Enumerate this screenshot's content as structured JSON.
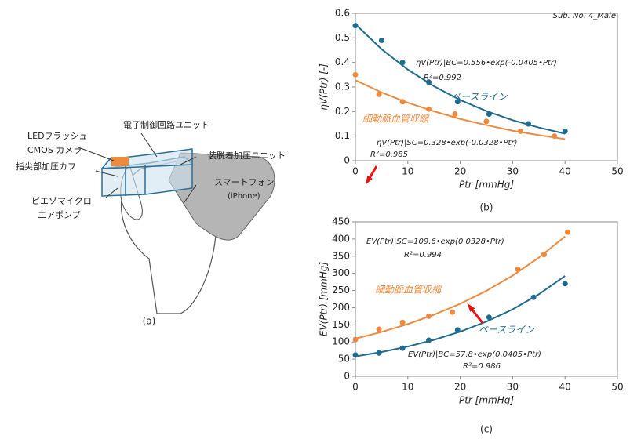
{
  "diagram": {
    "labels": [
      "LEDフラッシュ",
      "CMOS カメラ",
      "電子制御回路ユニット",
      "装脱着加圧ユニット",
      "指尖部加圧カフ",
      "スマートフォン",
      "(iPhone)",
      "ピエゾマイクロ",
      "エアポンプ"
    ],
    "caption": "(a)"
  },
  "chart_data": [
    {
      "type": "scatter",
      "caption": "(b)",
      "x_label": "Ptr [mmHg]",
      "y_label": "ηV(Ptr) [-]",
      "xlim": [
        0,
        50
      ],
      "xticks": [
        0,
        10,
        20,
        30,
        40,
        50
      ],
      "ylim": [
        0,
        0.6
      ],
      "yticks": [
        0,
        0.1,
        0.2,
        0.3,
        0.4,
        0.5,
        0.6
      ],
      "grid": false,
      "series": [
        {
          "style": "markers",
          "color": "#1f6c8f",
          "x": [
            0,
            5,
            9,
            14,
            19.5,
            25.5,
            33,
            40
          ],
          "values": [
            0.55,
            0.49,
            0.4,
            0.32,
            0.24,
            0.19,
            0.15,
            0.12
          ]
        },
        {
          "style": "markers",
          "color": "#ed8a3f",
          "x": [
            0,
            4.5,
            9,
            14,
            19,
            25,
            31.5,
            38
          ],
          "values": [
            0.35,
            0.27,
            0.24,
            0.21,
            0.19,
            0.16,
            0.12,
            0.1
          ]
        },
        {
          "style": "line",
          "color": "#1f6c8f",
          "x": [
            0,
            5,
            10,
            15,
            20,
            25,
            30,
            35,
            40
          ],
          "values": [
            0.556,
            0.454,
            0.371,
            0.303,
            0.247,
            0.202,
            0.165,
            0.135,
            0.11
          ]
        },
        {
          "style": "line",
          "color": "#ed8a3f",
          "x": [
            0,
            5,
            10,
            15,
            20,
            25,
            30,
            35,
            40
          ],
          "values": [
            0.328,
            0.278,
            0.236,
            0.201,
            0.17,
            0.145,
            0.122,
            0.104,
            0.088
          ]
        }
      ],
      "annotations": [
        {
          "text": "Sub. No. 4_Male",
          "color": "#222222"
        },
        {
          "text": "ηV(Ptr)|BC=0.556•exp(-0.0405•Ptr)",
          "color": "#222222"
        },
        {
          "text": "R²=0.992",
          "color": "#222222"
        },
        {
          "text": "ベースライン",
          "color": "#1f6c8f"
        },
        {
          "text": "細動脈血管収縮",
          "color": "#ed8a3f"
        },
        {
          "text": "ηV(Ptr)|SC=0.328•exp(-0.0328•Ptr)",
          "color": "#222222"
        },
        {
          "text": "R²=0.985",
          "color": "#222222"
        }
      ]
    },
    {
      "type": "scatter",
      "caption": "(c)",
      "x_label": "Ptr [mmHg]",
      "y_label": "EV(Ptr) [mmHg]",
      "xlim": [
        0,
        50
      ],
      "xticks": [
        0,
        10,
        20,
        30,
        40,
        50
      ],
      "ylim": [
        0,
        450
      ],
      "yticks": [
        0,
        50,
        100,
        150,
        200,
        250,
        300,
        350,
        400,
        450
      ],
      "grid": false,
      "series": [
        {
          "style": "markers",
          "color": "#1f6c8f",
          "x": [
            0,
            4.5,
            9,
            14,
            19.5,
            25.5,
            34,
            40
          ],
          "values": [
            62,
            68,
            82,
            105,
            135,
            172,
            230,
            270
          ]
        },
        {
          "style": "markers",
          "color": "#ed8a3f",
          "x": [
            0,
            4.5,
            9,
            14,
            18.5,
            31,
            36,
            40.5
          ],
          "values": [
            107,
            137,
            157,
            175,
            187,
            312,
            355,
            420
          ]
        },
        {
          "style": "line",
          "color": "#1f6c8f",
          "x": [
            0,
            5,
            10,
            15,
            20,
            25,
            30,
            35,
            40
          ],
          "values": [
            57.8,
            70.8,
            86.7,
            106.2,
            130,
            159.3,
            195,
            238.9,
            292.5
          ]
        },
        {
          "style": "line",
          "color": "#ed8a3f",
          "x": [
            0,
            5,
            10,
            15,
            20,
            25,
            30,
            35,
            40
          ],
          "values": [
            109.6,
            129.2,
            152.2,
            179.4,
            211.3,
            249.1,
            293.5,
            345.8,
            407.5
          ]
        }
      ],
      "annotations": [
        {
          "text": "EV(Ptr)|SC=109.6•exp(0.0328•Ptr)",
          "color": "#222222"
        },
        {
          "text": "R²=0.994",
          "color": "#222222"
        },
        {
          "text": "細動脈血管収縮",
          "color": "#ed8a3f"
        },
        {
          "text": "ベースライン",
          "color": "#1f6c8f"
        },
        {
          "text": "EV(Ptr)|BC=57.8•exp(0.0405•Ptr)",
          "color": "#222222"
        },
        {
          "text": "R²=0.986",
          "color": "#222222"
        }
      ]
    }
  ]
}
